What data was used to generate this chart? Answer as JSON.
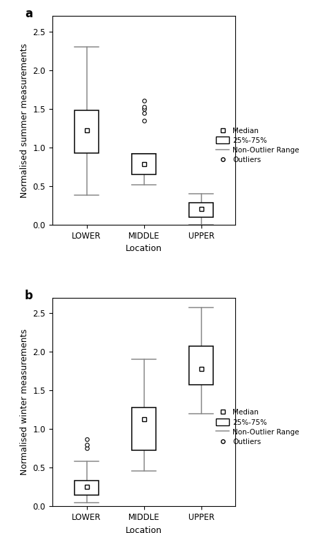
{
  "subplot_a": {
    "title": "a",
    "ylabel": "Normalised summer measurements",
    "xlabel": "Location",
    "categories": [
      "LOWER",
      "MIDDLE",
      "UPPER"
    ],
    "boxes": [
      {
        "q1": 0.93,
        "median": 1.22,
        "q3": 1.48,
        "whisker_low": 0.38,
        "whisker_high": 2.3,
        "outliers": []
      },
      {
        "q1": 0.65,
        "median": 0.78,
        "q3": 0.92,
        "whisker_low": 0.52,
        "whisker_high": 0.92,
        "outliers": [
          1.35,
          1.44,
          1.5,
          1.52,
          1.6
        ]
      },
      {
        "q1": 0.1,
        "median": 0.2,
        "q3": 0.28,
        "whisker_low": 0.0,
        "whisker_high": 0.4,
        "outliers": []
      }
    ],
    "ylim": [
      0.0,
      2.7
    ],
    "yticks": [
      0.0,
      0.5,
      1.0,
      1.5,
      2.0,
      2.5
    ]
  },
  "subplot_b": {
    "title": "b",
    "ylabel": "Normalised winter measurements",
    "xlabel": "Location",
    "categories": [
      "LOWER",
      "MIDDLE",
      "UPPER"
    ],
    "boxes": [
      {
        "q1": 0.15,
        "median": 0.25,
        "q3": 0.33,
        "whisker_low": 0.05,
        "whisker_high": 0.58,
        "outliers": [
          0.75,
          0.8,
          0.87
        ]
      },
      {
        "q1": 0.73,
        "median": 1.13,
        "q3": 1.28,
        "whisker_low": 0.46,
        "whisker_high": 1.9,
        "outliers": []
      },
      {
        "q1": 1.57,
        "median": 1.78,
        "q3": 2.07,
        "whisker_low": 1.2,
        "whisker_high": 2.57,
        "outliers": []
      }
    ],
    "ylim": [
      0.0,
      2.7
    ],
    "yticks": [
      0.0,
      0.5,
      1.0,
      1.5,
      2.0,
      2.5
    ]
  },
  "box_color": "#ffffff",
  "box_edge_color": "#000000",
  "whisker_color": "#888888",
  "median_marker": "s",
  "median_marker_color": "#ffffff",
  "median_marker_edge_color": "#000000",
  "median_marker_size": 5,
  "outlier_marker": "o",
  "outlier_marker_color": "#ffffff",
  "outlier_marker_edge_color": "#000000",
  "outlier_marker_size": 4,
  "box_width": 0.42,
  "linewidth": 1.1,
  "title_fontsize": 12,
  "label_fontsize": 9,
  "tick_fontsize": 8.5,
  "legend_fontsize": 7.5
}
